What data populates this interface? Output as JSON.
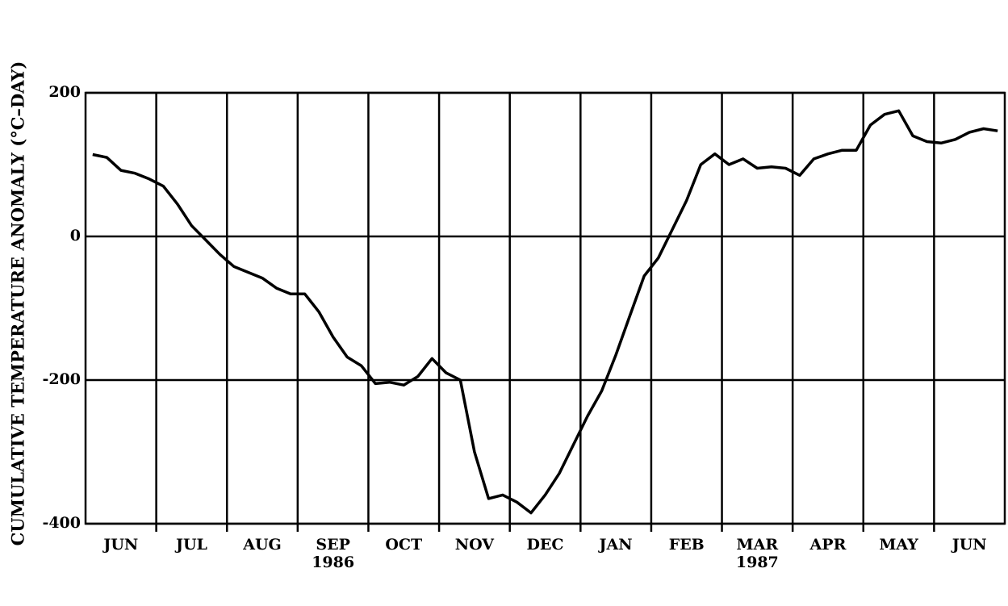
{
  "chart_data": {
    "type": "line",
    "ylabel": "CUMULATIVE TEMPERATURE ANOMALY (°C–DAY)",
    "categories": [
      null,
      null,
      "JUN",
      null,
      null,
      null,
      null,
      "JUL",
      null,
      null,
      null,
      null,
      "AUG",
      null,
      null,
      null,
      null,
      "SEP",
      null,
      null,
      null,
      null,
      "OCT",
      null,
      null,
      null,
      null,
      "NOV",
      null,
      null,
      null,
      null,
      "DEC",
      null,
      null,
      null,
      null,
      "JAN",
      null,
      null,
      null,
      null,
      "FEB",
      null,
      null,
      null,
      null,
      "MAR",
      null,
      null,
      null,
      null,
      "APR",
      null,
      null,
      null,
      null,
      "MAY",
      null,
      null,
      null,
      null,
      "JUN",
      null,
      null
    ],
    "year_labels": [
      null,
      null,
      null,
      null,
      null,
      null,
      null,
      null,
      null,
      null,
      null,
      null,
      null,
      null,
      null,
      null,
      null,
      "1986",
      null,
      null,
      null,
      null,
      null,
      null,
      null,
      null,
      null,
      null,
      null,
      null,
      null,
      null,
      null,
      null,
      null,
      null,
      null,
      null,
      null,
      null,
      null,
      null,
      null,
      null,
      null,
      null,
      null,
      "1987",
      null,
      null,
      null,
      null,
      null,
      null,
      null,
      null,
      null,
      null,
      null,
      null,
      null,
      null,
      null,
      null,
      null
    ],
    "series": [
      {
        "color": "#000000",
        "values": [
          114,
          110,
          92,
          88,
          80,
          70,
          45,
          15,
          -5,
          -25,
          -42,
          -50,
          -58,
          -72,
          -80,
          -80,
          -105,
          -140,
          -168,
          -180,
          -205,
          -203,
          -207,
          -195,
          -170,
          -190,
          -200,
          -300,
          -365,
          -360,
          -370,
          -385,
          -360,
          -330,
          -290,
          -250,
          -215,
          -165,
          -110,
          -55,
          -30,
          10,
          50,
          100,
          115,
          100,
          108,
          95,
          97,
          95,
          85,
          108,
          115,
          120,
          120,
          155,
          170,
          175,
          140,
          132,
          130,
          135,
          145,
          150,
          147
        ]
      }
    ],
    "ylim": [
      -400,
      200
    ],
    "yticks": [
      200,
      0,
      -200,
      -400
    ],
    "grid": true
  }
}
